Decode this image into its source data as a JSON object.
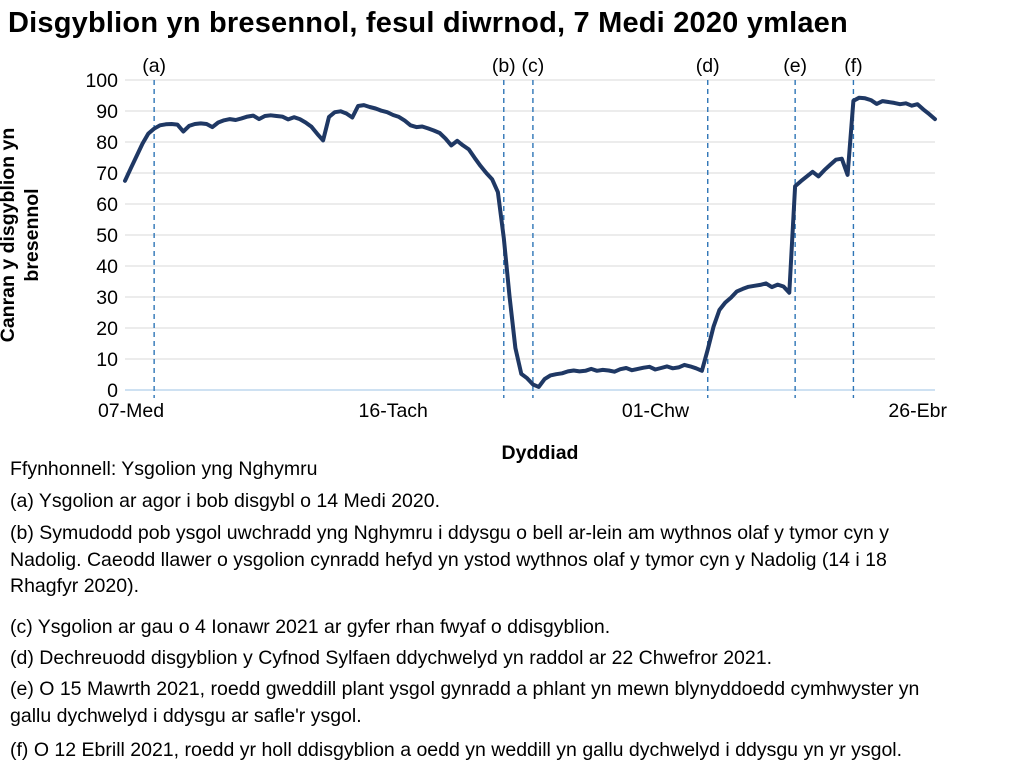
{
  "chart_data": {
    "type": "line",
    "title": "Disgyblion yn bresennol, fesul diwrnod, 7 Medi 2020 ymlaen",
    "xlabel": "Dyddiad",
    "ylabel": "Canran y disgyblion yn bresennol",
    "ylabel_lines": [
      "Canran y disgyblion yn",
      "bresennol"
    ],
    "ylim": [
      0,
      100
    ],
    "y_ticks": [
      0,
      10,
      20,
      30,
      40,
      50,
      60,
      70,
      80,
      90,
      100
    ],
    "x_unit": "school-day index from 7 Medi 2020 (weekends and holidays excluded)",
    "x_ticks": [
      {
        "label": "07-Med",
        "day": 0
      },
      {
        "label": "16-Tach",
        "day": 45
      },
      {
        "label": "01-Chw",
        "day": 90
      },
      {
        "label": "26-Ebr",
        "day": 135
      }
    ],
    "annotations": [
      {
        "label": "(a)",
        "day": 5
      },
      {
        "label": "(b)",
        "day": 65
      },
      {
        "label": "(c)",
        "day": 70
      },
      {
        "label": "(d)",
        "day": 100
      },
      {
        "label": "(e)",
        "day": 115
      },
      {
        "label": "(f)",
        "day": 125
      }
    ],
    "grid": "horizontal",
    "legend": "none",
    "series": [
      {
        "name": "Canran y disgyblion yn bresennol",
        "color": "#1f3864",
        "values": [
          67.5,
          71.5,
          75.5,
          79.5,
          82.7,
          84.3,
          85.4,
          85.7,
          85.8,
          85.6,
          83.4,
          85.2,
          85.8,
          86.0,
          85.8,
          84.8,
          86.3,
          87.0,
          87.4,
          87.1,
          87.6,
          88.2,
          88.5,
          87.4,
          88.4,
          88.6,
          88.4,
          88.2,
          87.3,
          88.0,
          87.4,
          86.3,
          84.9,
          82.6,
          80.5,
          88.1,
          89.6,
          89.9,
          89.2,
          87.9,
          91.6,
          91.9,
          91.3,
          90.8,
          90.1,
          89.6,
          88.7,
          88.1,
          86.9,
          85.4,
          84.8,
          85.0,
          84.4,
          83.7,
          82.9,
          81.1,
          78.9,
          80.4,
          78.9,
          77.6,
          74.9,
          72.3,
          70.0,
          68.0,
          63.8,
          49.0,
          30.0,
          13.5,
          5.2,
          3.8,
          1.8,
          1.0,
          3.5,
          4.7,
          5.1,
          5.4,
          6.0,
          6.3,
          6.0,
          6.2,
          6.8,
          6.2,
          6.5,
          6.3,
          5.9,
          6.7,
          7.1,
          6.4,
          6.8,
          7.2,
          7.5,
          6.6,
          7.1,
          7.6,
          7.0,
          7.3,
          8.1,
          7.6,
          7.0,
          6.2,
          13.0,
          20.5,
          25.8,
          28.2,
          29.8,
          31.8,
          32.6,
          33.3,
          33.6,
          33.9,
          34.4,
          33.2,
          34.0,
          33.4,
          31.4,
          65.7,
          67.4,
          68.9,
          70.4,
          68.9,
          70.9,
          72.6,
          74.3,
          74.6,
          69.4,
          93.3,
          94.3,
          94.1,
          93.5,
          92.3,
          93.2,
          92.9,
          92.6,
          92.2,
          92.5,
          91.7,
          92.2,
          90.5,
          89.0,
          87.4
        ]
      }
    ]
  },
  "colors": {
    "line": "#1f3864",
    "annotation_line": "#2e75b6",
    "gridline": "#d9d9d9",
    "axis_line": "#bdd7ee",
    "text": "#000000"
  },
  "source": "Ffynhonnell: Ysgolion yng Nghymru",
  "footnotes": [
    "(a) Ysgolion ar agor i bob disgybl o 14 Medi 2020.",
    "(b) Symudodd pob ysgol uwchradd yng Nghymru i ddysgu o bell ar-lein am wythnos olaf y tymor cyn y Nadolig. Caeodd llawer o ysgolion cynradd hefyd yn ystod wythnos olaf y tymor cyn y Nadolig (14 i 18 Rhagfyr 2020).",
    "(c) Ysgolion ar gau o 4 Ionawr 2021 ar gyfer rhan fwyaf o ddisgyblion.",
    "(d) Dechreuodd disgyblion y Cyfnod Sylfaen ddychwelyd yn raddol ar 22 Chwefror 2021.",
    "(e) O 15 Mawrth 2021, roedd gweddill plant ysgol gynradd a phlant yn mewn blynyddoedd cymhwyster yn gallu dychwelyd i ddysgu ar safle'r ysgol.",
    "(f) O 12 Ebrill 2021, roedd yr holl ddisgyblion a oedd yn weddill yn gallu dychwelyd i ddysgu yn yr ysgol."
  ]
}
